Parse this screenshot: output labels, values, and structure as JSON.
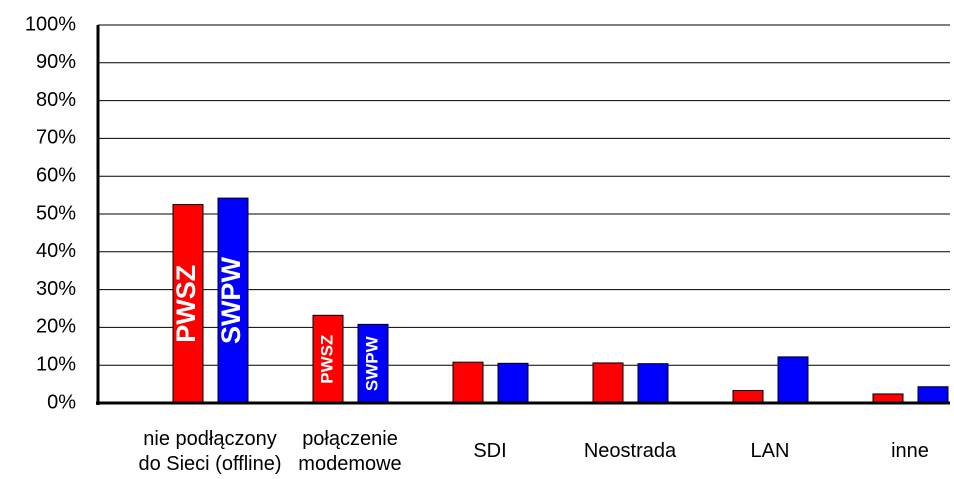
{
  "chart_data": {
    "type": "bar",
    "categories": [
      "nie podłączony\ndo Sieci (offline)",
      "połączenie\nmodemowe",
      "SDI",
      "Neostrada",
      "LAN",
      "inne"
    ],
    "series": [
      {
        "name": "PWSZ",
        "color": "#ff0000",
        "values": [
          52.5,
          23.2,
          10.8,
          10.6,
          3.3,
          2.4
        ]
      },
      {
        "name": "SWPW",
        "color": "#0000ff",
        "values": [
          54.2,
          20.8,
          10.5,
          10.4,
          12.2,
          4.3
        ]
      }
    ],
    "ylim": [
      0,
      100
    ],
    "yticks": [
      {
        "value": 0,
        "label": "0%"
      },
      {
        "value": 10,
        "label": "10%"
      },
      {
        "value": 20,
        "label": "20%"
      },
      {
        "value": 30,
        "label": "30%"
      },
      {
        "value": 40,
        "label": "40%"
      },
      {
        "value": 50,
        "label": "50%"
      },
      {
        "value": 60,
        "label": "60%"
      },
      {
        "value": 70,
        "label": "70%"
      },
      {
        "value": 80,
        "label": "80%"
      },
      {
        "value": 90,
        "label": "90%"
      },
      {
        "value": 100,
        "label": "100%"
      }
    ],
    "grid": true
  }
}
